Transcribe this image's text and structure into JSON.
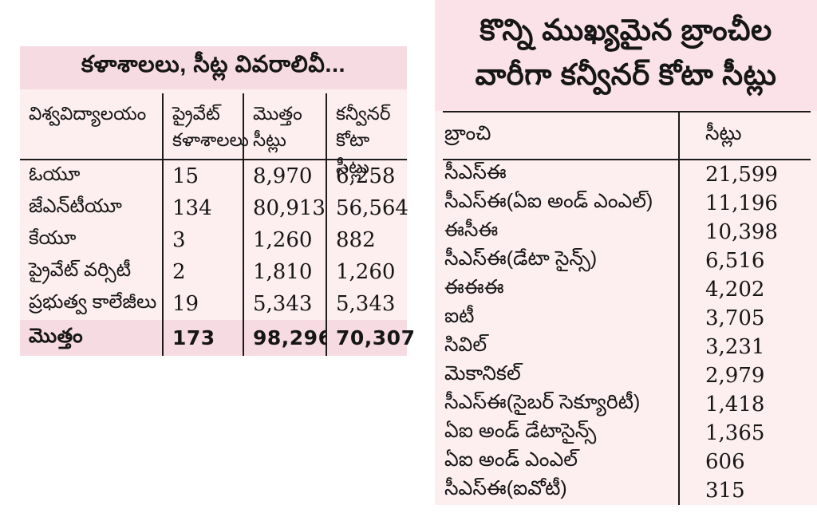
{
  "colors": {
    "page_background": "#ffffff",
    "panel_pink": "#fdeef0",
    "band_pink": "#f7dbe2",
    "right_title_pink": "#fae2e8",
    "line": "#1b1b1b",
    "text": "#161616"
  },
  "left_table": {
    "title": "కళాశాలలు, సీట్ల వివరాలివీ...",
    "columns": [
      "విశ్వవిద్యాలయం",
      "ప్రైవేట్ కళాశాలలు",
      "మొత్తం సీట్లు",
      "కన్వీనర్ కోటా సీట్లు"
    ],
    "rows": [
      {
        "university": "ఓయూ",
        "private": "15",
        "total": "8,970",
        "convener": "6,258"
      },
      {
        "university": "జేఎన్‌టీయూ",
        "private": "134",
        "total": "80,913",
        "convener": "56,564"
      },
      {
        "university": "కేయూ",
        "private": "3",
        "total": "1,260",
        "convener": "882"
      },
      {
        "university": "ప్రైవేట్ వర్సిటీ",
        "private": "2",
        "total": "1,810",
        "convener": "1,260"
      },
      {
        "university": "ప్రభుత్వ కాలేజీలు",
        "private": "19",
        "total": "5,343",
        "convener": "5,343"
      }
    ],
    "total_row": {
      "label": "మొత్తం",
      "private": "173",
      "total": "98,296",
      "convener": "70,307"
    }
  },
  "right_table": {
    "title_line1": "కొన్ని ముఖ్యమైన బ్రాంచీల",
    "title_line2": "వారీగా కన్వీనర్ కోటా సీట్లు",
    "columns": [
      "బ్రాంచి",
      "సీట్లు"
    ],
    "rows": [
      {
        "branch": "సీఎస్‌ఈ",
        "seats": "21,599"
      },
      {
        "branch": "సీఎస్‌ఈ(ఏఐ అండ్ ఎంఎల్)",
        "seats": "11,196"
      },
      {
        "branch": "ఈసీఈ",
        "seats": "10,398"
      },
      {
        "branch": "సీఎస్‌ఈ(డేటా సైన్స్)",
        "seats": "6,516"
      },
      {
        "branch": "ఈఈఈ",
        "seats": "4,202"
      },
      {
        "branch": "ఐటీ",
        "seats": "3,705"
      },
      {
        "branch": "సివిల్",
        "seats": "3,231"
      },
      {
        "branch": "మెకానికల్",
        "seats": "2,979"
      },
      {
        "branch": "సీఎస్‌ఈ(సైబర్ సెక్యూరిటీ)",
        "seats": "1,418"
      },
      {
        "branch": "ఏఐ అండ్ డేటాసైన్స్",
        "seats": "1,365"
      },
      {
        "branch": "ఏఐ అండ్ ఎంఎల్",
        "seats": "606"
      },
      {
        "branch": "సీఎస్‌ఈ(ఐవోటీ)",
        "seats": "315"
      }
    ]
  }
}
